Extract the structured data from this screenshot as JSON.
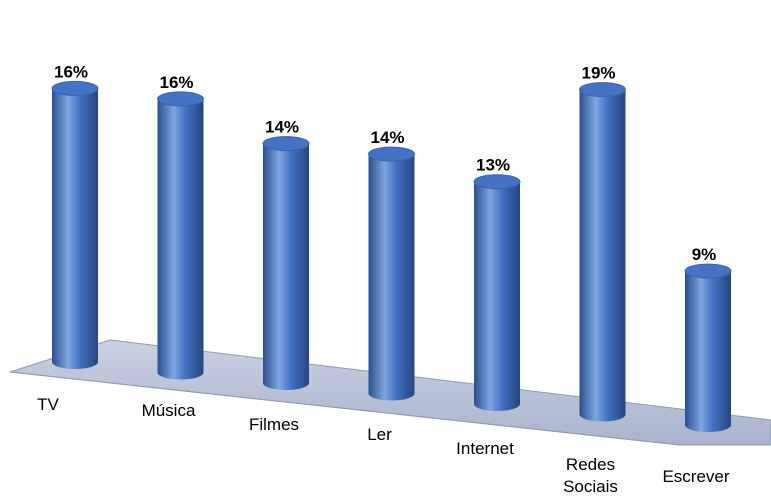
{
  "chart_data": {
    "type": "bar",
    "categories": [
      "TV",
      "Música",
      "Filmes",
      "Ler",
      "Internet",
      "Redes Sociais",
      "Escrever"
    ],
    "values": [
      16,
      16,
      14,
      14,
      13,
      19,
      9
    ],
    "data_labels": [
      "16%",
      "16%",
      "14%",
      "14%",
      "13%",
      "19%",
      "9%"
    ],
    "value_unit": "%",
    "title": "",
    "xlabel": "",
    "ylabel": "",
    "ylim": [
      0,
      20
    ],
    "grid": false,
    "legend": "none",
    "style": "3d-cylinder",
    "colors": {
      "bar": "#4472C4",
      "bar_dark": "#2A4F8F",
      "bar_light": "#7EA6E0",
      "floor": "#B7C1D6",
      "floor_edge": "#8E9AB3"
    }
  }
}
